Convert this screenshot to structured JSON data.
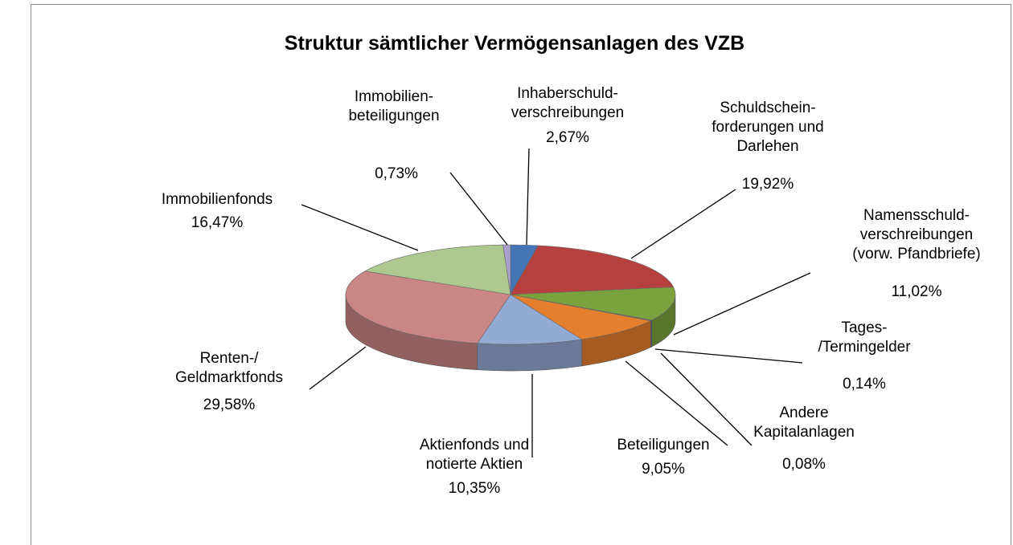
{
  "chart_data": {
    "type": "pie3d",
    "title": "Struktur sämtlicher Vermögensanlagen des VZB",
    "categories": [
      "Inhaberschuld-\nverschreibungen",
      "Schuldschein-\nforderungen und\nDarlehen",
      "Namensschuld-\nverschreibungen\n(vorw. Pfandbriefe)",
      "Tages-\n/Termingelder",
      "Andere\nKapitalanlagen",
      "Beteiligungen",
      "Aktienfonds und\nnotierte Aktien",
      "Renten-/\nGeldmarktfonds",
      "Immobilienfonds",
      "Immobilien-\nbeteiligungen"
    ],
    "values": [
      2.67,
      19.92,
      11.02,
      0.14,
      0.08,
      9.05,
      10.35,
      29.58,
      16.47,
      0.73
    ],
    "value_labels": [
      "2,67%",
      "19,92%",
      "11,02%",
      "0,14%",
      "0,08%",
      "9,05%",
      "10,35%",
      "29,58%",
      "16,47%",
      "0,73%"
    ],
    "colors": [
      "#4475b4",
      "#b6403e",
      "#7aa23e",
      "#7e63a2",
      "#3aa2c2",
      "#e57f2e",
      "#93aad3",
      "#c98684",
      "#aec98f",
      "#aaa0cb"
    ]
  }
}
